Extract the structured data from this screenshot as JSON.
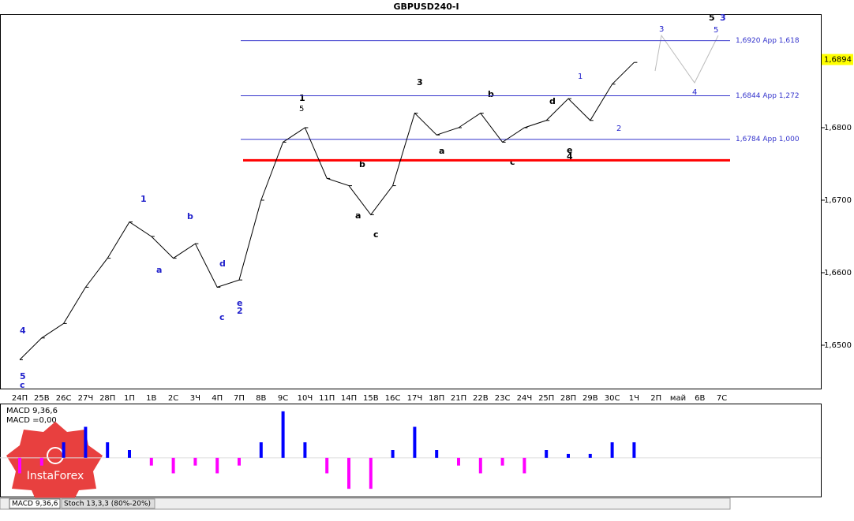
{
  "chart_data": {
    "type": "line",
    "title": "GBPUSD240-I",
    "categories": [
      "24П",
      "25В",
      "26С",
      "27Ч",
      "28П",
      "1П",
      "1В",
      "2С",
      "3Ч",
      "4П",
      "7П",
      "8В",
      "9С",
      "10Ч",
      "11П",
      "14П",
      "15В",
      "16С",
      "17Ч",
      "18П",
      "21П",
      "22В",
      "23С",
      "24Ч",
      "25П",
      "28П",
      "29В",
      "30С",
      "1Ч",
      "2П",
      "май",
      "6В",
      "7С"
    ],
    "values": [
      1.648,
      1.651,
      1.653,
      1.658,
      1.662,
      1.667,
      1.665,
      1.662,
      1.664,
      1.658,
      1.659,
      1.67,
      1.678,
      1.68,
      1.673,
      1.672,
      1.668,
      1.672,
      1.682,
      1.679,
      1.68,
      1.682,
      1.678,
      1.68,
      1.681,
      1.684,
      1.681,
      1.686,
      1.689,
      null,
      null,
      null,
      null
    ],
    "color": "#000000",
    "ylim": [
      1.64402,
      1.69565
    ],
    "yticks": [
      {
        "value": 1.65,
        "label": "1,6500"
      },
      {
        "value": 1.66,
        "label": "1,6600"
      },
      {
        "value": 1.67,
        "label": "1,6700"
      },
      {
        "value": 1.68,
        "label": "1,6800"
      }
    ],
    "current_price": {
      "value": 1.6894,
      "label": "1,6894"
    },
    "levels": [
      {
        "value": 1.692,
        "label": "1,6920 App 1,618",
        "color": "#3333cc"
      },
      {
        "value": 1.6844,
        "label": "1,6844 App 1,272",
        "color": "#3333cc"
      },
      {
        "value": 1.6784,
        "label": "1,6784 App 1,000",
        "color": "#3333cc"
      }
    ],
    "support": {
      "value": 1.6755,
      "color": "#ff0000"
    },
    "wave_labels": [
      "1",
      "5",
      "c",
      "4",
      "1",
      "5",
      "3",
      "b",
      "d",
      "e",
      "4",
      "c",
      "a",
      "b",
      "2",
      "e",
      "d",
      "c",
      "a",
      "b",
      "1",
      "2",
      "3",
      "4",
      "5",
      "5",
      "3",
      "c",
      "a"
    ],
    "indicator": {
      "type": "bar",
      "title": "MACD 9,36,6",
      "value_text": "MACD =0,00",
      "values": [
        -0.002,
        -0.001,
        0.002,
        0.004,
        0.002,
        0.001,
        -0.001,
        -0.002,
        -0.001,
        -0.002,
        -0.001,
        0.002,
        0.006,
        0.002,
        -0.002,
        -0.004,
        -0.004,
        0.001,
        0.004,
        0.001,
        -0.001,
        -0.002,
        -0.001,
        -0.002,
        0.001,
        0.0005,
        0.0005,
        0.002,
        0.002,
        null,
        null,
        null,
        null
      ],
      "ylim": [
        -0.005,
        0.007
      ],
      "positive_color": "#0000ff",
      "negative_color": "#ff00ff"
    },
    "tabs": [
      "MACD 9,36,6",
      "Stoch 13,3,3 (80%-20%)"
    ],
    "logo": "InstaForex"
  }
}
